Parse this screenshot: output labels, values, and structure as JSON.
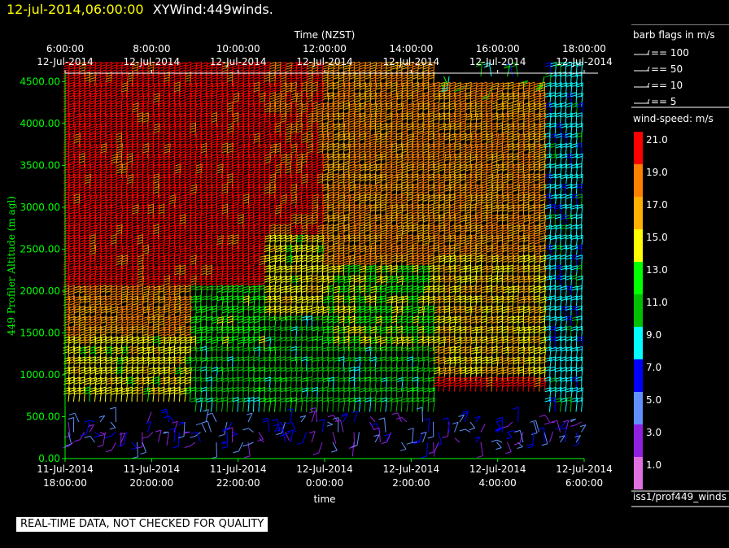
{
  "header": {
    "datetime": "12-jul-2014,06:00:00",
    "title": "XYWind:449winds."
  },
  "chart_data": {
    "type": "wind-barb-time-height",
    "top_axis_title": "Time (NZST)",
    "top_ticks": [
      {
        "time": "6:00:00",
        "date": "12-Jul-2014"
      },
      {
        "time": "8:00:00",
        "date": "12-Jul-2014"
      },
      {
        "time": "10:00:00",
        "date": "12-Jul-2014"
      },
      {
        "time": "12:00:00",
        "date": "12-Jul-2014"
      },
      {
        "time": "14:00:00",
        "date": "12-Jul-2014"
      },
      {
        "time": "16:00:00",
        "date": "12-Jul-2014"
      },
      {
        "time": "18:00:00",
        "date": "12-Jul-2014"
      }
    ],
    "bottom_axis_title": "time",
    "bottom_ticks": [
      {
        "date": "11-Jul-2014",
        "time": "18:00:00"
      },
      {
        "date": "11-Jul-2014",
        "time": "20:00:00"
      },
      {
        "date": "11-Jul-2014",
        "time": "22:00:00"
      },
      {
        "date": "12-Jul-2014",
        "time": "0:00:00"
      },
      {
        "date": "12-Jul-2014",
        "time": "2:00:00"
      },
      {
        "date": "12-Jul-2014",
        "time": "4:00:00"
      },
      {
        "date": "12-Jul-2014",
        "time": "6:00:00"
      }
    ],
    "y_axis_title": "449 Profiler Altitude (m agl)",
    "y_ticks": [
      "0.00",
      "500.00",
      "1000.00",
      "1500.00",
      "2000.00",
      "2500.00",
      "3000.00",
      "3500.00",
      "4000.00",
      "4500.00"
    ],
    "ylim": [
      0,
      4600
    ],
    "time_range_hours": [
      0,
      12
    ],
    "regions": [
      {
        "t": [
          0.0,
          3.0
        ],
        "h": [
          2000,
          4600
        ],
        "speed": 21
      },
      {
        "t": [
          0.0,
          3.0
        ],
        "h": [
          1400,
          2000
        ],
        "speed": 18
      },
      {
        "t": [
          0.0,
          3.0
        ],
        "h": [
          600,
          1400
        ],
        "speed": 15
      },
      {
        "t": [
          3.0,
          4.7
        ],
        "h": [
          2000,
          4600
        ],
        "speed": 21
      },
      {
        "t": [
          3.0,
          4.7
        ],
        "h": [
          1200,
          2000
        ],
        "speed": 13
      },
      {
        "t": [
          3.0,
          4.7
        ],
        "h": [
          500,
          1200
        ],
        "speed": 11
      },
      {
        "t": [
          4.7,
          6.0
        ],
        "h": [
          2600,
          4600
        ],
        "speed": 20
      },
      {
        "t": [
          4.7,
          6.0
        ],
        "h": [
          1600,
          2600
        ],
        "speed": 15
      },
      {
        "t": [
          4.7,
          6.0
        ],
        "h": [
          500,
          1600
        ],
        "speed": 11
      },
      {
        "t": [
          6.0,
          8.6
        ],
        "h": [
          2200,
          4600
        ],
        "speed": 18
      },
      {
        "t": [
          6.0,
          8.6
        ],
        "h": [
          1200,
          2200
        ],
        "speed": 14
      },
      {
        "t": [
          6.0,
          8.6
        ],
        "h": [
          500,
          1200
        ],
        "speed": 11
      },
      {
        "t": [
          8.6,
          11.2
        ],
        "h": [
          2300,
          4400
        ],
        "speed": 18
      },
      {
        "t": [
          8.6,
          11.2
        ],
        "h": [
          900,
          2300
        ],
        "speed": 16
      },
      {
        "t": [
          8.6,
          11.2
        ],
        "h": [
          700,
          900
        ],
        "speed": 21
      },
      {
        "t": [
          11.2,
          12.0
        ],
        "h": [
          500,
          4600
        ],
        "speed": 9
      }
    ],
    "barb_flags": {
      "title": "barb flags in m/s",
      "entries": [
        "== 100",
        "== 50",
        "== 10",
        "== 5"
      ]
    },
    "color_scale": {
      "title": "wind-speed: m/s",
      "bins": [
        {
          "label": "21.0",
          "color": "#ff0000"
        },
        {
          "label": "19.0",
          "color": "#ff8000"
        },
        {
          "label": "17.0",
          "color": "#ffb000"
        },
        {
          "label": "15.0",
          "color": "#ffff00"
        },
        {
          "label": "13.0",
          "color": "#00ff00"
        },
        {
          "label": "11.0",
          "color": "#00c000"
        },
        {
          "label": "9.0",
          "color": "#00ffff"
        },
        {
          "label": "7.0",
          "color": "#0000ff"
        },
        {
          "label": "5.0",
          "color": "#6090ff"
        },
        {
          "label": "3.0",
          "color": "#9020e0"
        },
        {
          "label": "1.0",
          "color": "#e070e0"
        }
      ]
    },
    "source_label": "iss1/prof449_winds"
  },
  "footer": {
    "qc_note": "REAL-TIME DATA, NOT CHECKED FOR QUALITY"
  },
  "colors": {
    "axis": "#00ff00",
    "background": "#000000",
    "header_date": "#ffff00"
  }
}
